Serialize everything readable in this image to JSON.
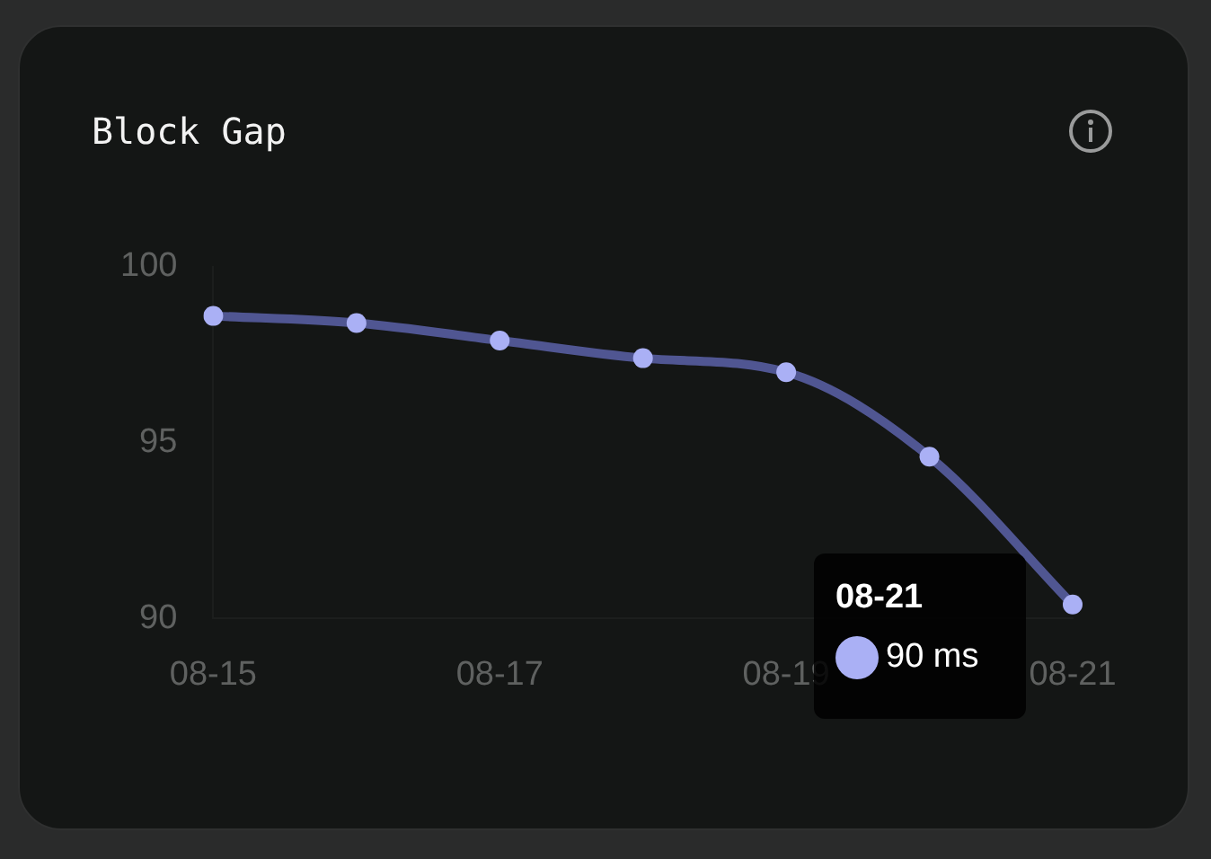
{
  "chart_data": {
    "type": "line",
    "title": "Block Gap",
    "categories": [
      "08-15",
      null,
      "08-17",
      null,
      "08-19",
      null,
      "08-21"
    ],
    "series": [
      {
        "color": "#5a60a6",
        "values": [
          98.6,
          98.4,
          97.9,
          97.4,
          97.0,
          94.6,
          90.4
        ]
      }
    ],
    "ylim": [
      90,
      100
    ],
    "yticks": [
      90,
      95,
      100
    ],
    "grid": false,
    "legend": false,
    "marker": "circle",
    "line_style": "solid",
    "annotations": [
      "08-21",
      "90 ms"
    ]
  }
}
